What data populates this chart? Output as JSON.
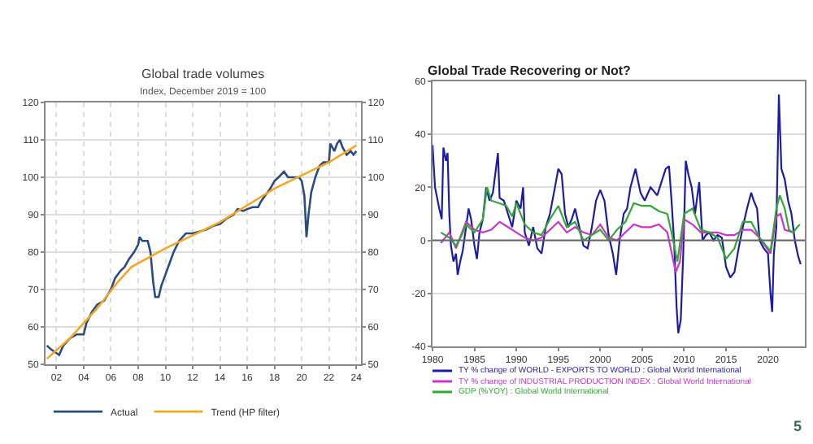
{
  "chart_data": [
    {
      "type": "line",
      "title": "Global trade volumes",
      "subtitle": "Index, December 2019 = 100",
      "xlim": [
        2001.2,
        2024.35
      ],
      "xticks": [
        {
          "value": 2002,
          "label": "02"
        },
        {
          "value": 2004,
          "label": "04"
        },
        {
          "value": 2006,
          "label": "06"
        },
        {
          "value": 2008,
          "label": "08"
        },
        {
          "value": 2010,
          "label": "10"
        },
        {
          "value": 2012,
          "label": "12"
        },
        {
          "value": 2014,
          "label": "14"
        },
        {
          "value": 2016,
          "label": "16"
        },
        {
          "value": 2018,
          "label": "18"
        },
        {
          "value": 2020,
          "label": "20"
        },
        {
          "value": 2022,
          "label": "22"
        },
        {
          "value": 2024,
          "label": "24"
        }
      ],
      "ylim": [
        50,
        120
      ],
      "yticks": [
        50,
        60,
        70,
        80,
        90,
        100,
        110,
        120
      ],
      "y2lim": [
        50,
        120
      ],
      "y2ticks": [
        50,
        60,
        70,
        80,
        90,
        100,
        110,
        120
      ],
      "grid": true,
      "legend": "bottom",
      "series": [
        {
          "name": "Actual",
          "color": "#2b4b80",
          "x": [
            2001.3,
            2001.6,
            2002.0,
            2002.2,
            2002.5,
            2003.0,
            2003.5,
            2004.0,
            2004.2,
            2004.6,
            2005.0,
            2005.5,
            2006.0,
            2006.3,
            2006.7,
            2007.0,
            2007.3,
            2007.7,
            2008.0,
            2008.1,
            2008.3,
            2008.7,
            2008.9,
            2009.1,
            2009.25,
            2009.5,
            2009.7,
            2010.0,
            2010.3,
            2010.6,
            2011.0,
            2011.5,
            2012.0,
            2012.5,
            2013.0,
            2013.5,
            2014.0,
            2014.5,
            2015.0,
            2015.3,
            2015.7,
            2016.0,
            2016.4,
            2016.8,
            2017.0,
            2017.3,
            2017.7,
            2018.0,
            2018.3,
            2018.7,
            2019.0,
            2019.5,
            2019.8,
            2020.0,
            2020.2,
            2020.35,
            2020.5,
            2020.7,
            2021.0,
            2021.3,
            2021.6,
            2022.0,
            2022.1,
            2022.4,
            2022.6,
            2022.8,
            2023.0,
            2023.3,
            2023.6,
            2023.8,
            2024.0
          ],
          "values": [
            55,
            54,
            53,
            52.5,
            55,
            57,
            58,
            58,
            61,
            64,
            66,
            67,
            70,
            73,
            75,
            76,
            78,
            80,
            82,
            84,
            83,
            83,
            80,
            72,
            68,
            68,
            71,
            74,
            77,
            80,
            83,
            85,
            85,
            85.5,
            86,
            87,
            87.5,
            89,
            90,
            91.5,
            91,
            91.5,
            92,
            92,
            93.5,
            95,
            97,
            99,
            100,
            101.5,
            100,
            100,
            100,
            99,
            95,
            84,
            90,
            96,
            100,
            103,
            104,
            104,
            109,
            107,
            109,
            110,
            108,
            106,
            107,
            106,
            107
          ]
        },
        {
          "name": "Trend (HP filter)",
          "color": "#f5a623",
          "x": [
            2001.3,
            2003,
            2005,
            2006.5,
            2007.5,
            2009,
            2010,
            2012,
            2014,
            2016,
            2018,
            2020,
            2022,
            2024
          ],
          "values": [
            51.5,
            57,
            65,
            72,
            76,
            79,
            81,
            84.5,
            88,
            92.5,
            97,
            100.5,
            104,
            108.5
          ]
        }
      ]
    },
    {
      "type": "line",
      "title": "Global Trade Recovering or Not?",
      "xlim": [
        1980,
        2024.4
      ],
      "xticks": [
        1980,
        1985,
        1990,
        1995,
        2000,
        2005,
        2010,
        2015,
        2020
      ],
      "ylim": [
        -40,
        60
      ],
      "yticks": [
        -40,
        -20,
        0,
        20,
        40,
        60
      ],
      "grid": "y",
      "legend": "bottom",
      "ref_lines": [
        {
          "axis": "y",
          "value": 0,
          "color": "#666666"
        }
      ],
      "annotations": [
        "5"
      ],
      "series": [
        {
          "name": "TY % change of WORLD - EXPORTS TO WORLD : Global World International",
          "color": "#1c1ca8",
          "x": [
            1980,
            1980.3,
            1980.8,
            1981.1,
            1981.3,
            1981.6,
            1981.8,
            1982.0,
            1982.2,
            1982.5,
            1982.8,
            1983.0,
            1983.3,
            1983.6,
            1984,
            1984.3,
            1984.6,
            1985,
            1985.3,
            1985.6,
            1986,
            1986.4,
            1986.8,
            1987.2,
            1987.8,
            1988,
            1988.5,
            1989,
            1989.5,
            1990,
            1990.5,
            1990.8,
            1991,
            1991.5,
            1992,
            1992.5,
            1993,
            1993.5,
            1994,
            1994.6,
            1995,
            1995.4,
            1995.8,
            1996.2,
            1996.6,
            1997,
            1997.5,
            1998,
            1998.5,
            1999,
            1999.5,
            2000,
            2000.5,
            2001,
            2001.5,
            2001.9,
            2002.3,
            2002.8,
            2003.2,
            2003.6,
            2004.2,
            2004.8,
            2005.3,
            2006,
            2006.8,
            2007.3,
            2007.8,
            2008.2,
            2008.5,
            2008.8,
            2009.1,
            2009.3,
            2009.6,
            2009.9,
            2010.2,
            2010.5,
            2010.9,
            2011.3,
            2011.8,
            2012.2,
            2012.6,
            2013,
            2013.5,
            2014,
            2014.5,
            2015,
            2015.5,
            2016,
            2016.5,
            2017,
            2017.5,
            2018,
            2018.3,
            2018.7,
            2019,
            2019.5,
            2020,
            2020.3,
            2020.5,
            2020.7,
            2021,
            2021.3,
            2021.6,
            2022,
            2022.4,
            2022.8,
            2023.2,
            2023.6,
            2023.9
          ],
          "values": [
            36,
            20,
            12,
            8,
            35,
            30,
            33,
            10,
            -2,
            -8,
            -5,
            -13,
            -8,
            -4,
            5,
            12,
            8,
            -2,
            -7,
            3,
            8,
            20,
            15,
            18,
            33,
            16,
            15,
            10,
            5,
            15,
            12,
            20,
            3,
            -2,
            5,
            -3,
            -5,
            5,
            10,
            20,
            27,
            25,
            10,
            5,
            8,
            12,
            5,
            -2,
            -3,
            5,
            15,
            19,
            15,
            2,
            -5,
            -13,
            0,
            10,
            12,
            20,
            27,
            18,
            15,
            20,
            17,
            22,
            27,
            28,
            15,
            0,
            -25,
            -35,
            -30,
            -5,
            30,
            25,
            20,
            10,
            22,
            0,
            2,
            3,
            0,
            2,
            1,
            -10,
            -14,
            -12,
            -3,
            5,
            12,
            18,
            15,
            12,
            0,
            -3,
            -5,
            -20,
            -27,
            -5,
            5,
            55,
            27,
            23,
            15,
            10,
            0,
            -6,
            -9
          ]
        },
        {
          "name": "TY % change of INDUSTRIAL PRODUCTION INDEX : Global World International",
          "color": "#cc33cc",
          "x": [
            1981,
            1982,
            1982.8,
            1984,
            1985,
            1986,
            1987,
            1988,
            1989,
            1990,
            1991,
            1992,
            1993,
            1994,
            1995,
            1996,
            1997,
            1998,
            1999,
            2000,
            2001,
            2002,
            2003,
            2004,
            2005,
            2006,
            2007,
            2008,
            2009,
            2009.5,
            2010,
            2011,
            2012,
            2013,
            2014,
            2015,
            2016,
            2017,
            2018,
            2019,
            2020.3,
            2021,
            2021.5,
            2022,
            2023
          ],
          "values": [
            -1,
            3,
            -3,
            7,
            4,
            3,
            4,
            7,
            5,
            3,
            1,
            0,
            1,
            4,
            7,
            3,
            5,
            3,
            2,
            6,
            1,
            0,
            3,
            6,
            5,
            5,
            6,
            3,
            -12,
            -8,
            8,
            6,
            3,
            3,
            3,
            2,
            2,
            4,
            4,
            1,
            -5,
            9,
            10,
            4,
            3
          ]
        },
        {
          "name": "GDP (%YOY) : Global World International",
          "color": "#33a833",
          "x": [
            1981,
            1982,
            1982.8,
            1983.5,
            1984,
            1985,
            1986,
            1986.5,
            1987,
            1988,
            1988.8,
            1989.5,
            1990,
            1991,
            1992,
            1993,
            1994,
            1995,
            1996,
            1997,
            1998,
            1999,
            2000,
            2001,
            2002,
            2003,
            2004,
            2005,
            2006,
            2007,
            2008,
            2008.5,
            2009.2,
            2010,
            2011,
            2012,
            2013,
            2014,
            2015,
            2016,
            2017,
            2018,
            2019,
            2020.3,
            2021,
            2021.4,
            2022,
            2022.5,
            2023,
            2023.5,
            2023.8
          ],
          "values": [
            3,
            1,
            -2,
            2,
            6,
            3,
            8,
            20,
            15,
            14,
            13,
            9,
            14,
            6,
            3,
            2,
            8,
            13,
            5,
            7,
            0,
            2,
            4,
            0,
            4,
            7,
            14,
            13,
            13,
            11,
            10,
            3,
            -8,
            10,
            12,
            4,
            3,
            1,
            -7,
            -3,
            7,
            7,
            1,
            -4,
            12,
            17,
            12,
            4,
            3,
            5,
            6
          ]
        }
      ]
    }
  ]
}
